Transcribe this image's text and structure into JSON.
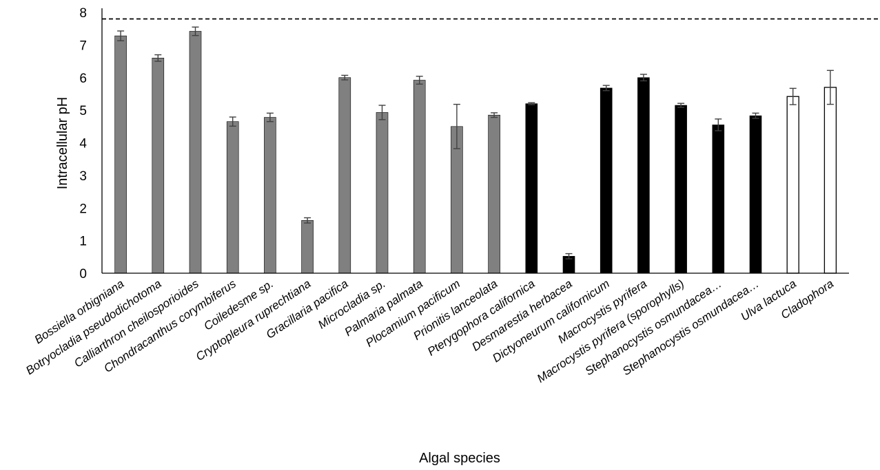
{
  "chart_data": {
    "type": "bar",
    "title": "",
    "xlabel": "Algal species",
    "ylabel": "Intracellular pH",
    "ylim": [
      0,
      8
    ],
    "yticks": [
      0,
      1,
      2,
      3,
      4,
      5,
      6,
      7,
      8
    ],
    "reference_line": {
      "y": 7.8,
      "style": "dashed"
    },
    "grid": false,
    "legend": "none",
    "colors": {
      "red_algae": "#808080",
      "brown_algae": "#000000",
      "green_algae": "#ffffff",
      "bar_edge": "#000000",
      "error_bar": "#404040"
    },
    "categories": [
      "Bossiella orbigniana",
      "Botryocladia pseudodichotoma",
      "Calliarthron cheilosporioides",
      "Chondracanthus corymbiferus",
      "Coiledesme sp.",
      "Cryptopleura ruprechtiana",
      "Gracillaria pacifica",
      "Microcladia sp.",
      "Palmaria palmata",
      "Plocamium pacificum",
      "Prionitis lanceolata",
      "Pterygophora californica",
      "Desmarestia herbacea",
      "Dictyoneurum californicum",
      "Macrocystis pyrifera",
      "Macrocystis pyrifera (sporophylls)",
      "Stephanocystis osmundacea…",
      "Stephanocystis osmundacea…",
      "Ulva lactuca",
      "Cladophora"
    ],
    "values": [
      7.28,
      6.6,
      7.42,
      4.65,
      4.78,
      1.62,
      6.0,
      4.93,
      5.92,
      4.5,
      4.85,
      5.2,
      0.52,
      5.68,
      6.0,
      5.15,
      4.55,
      4.83,
      5.42,
      5.7
    ],
    "errors": [
      0.15,
      0.1,
      0.13,
      0.14,
      0.13,
      0.08,
      0.07,
      0.22,
      0.12,
      0.68,
      0.07,
      0.03,
      0.08,
      0.08,
      0.1,
      0.06,
      0.18,
      0.08,
      0.25,
      0.52
    ],
    "groups": [
      "red_algae",
      "red_algae",
      "red_algae",
      "red_algae",
      "red_algae",
      "red_algae",
      "red_algae",
      "red_algae",
      "red_algae",
      "red_algae",
      "red_algae",
      "brown_algae",
      "brown_algae",
      "brown_algae",
      "brown_algae",
      "brown_algae",
      "brown_algae",
      "brown_algae",
      "green_algae",
      "green_algae"
    ]
  }
}
